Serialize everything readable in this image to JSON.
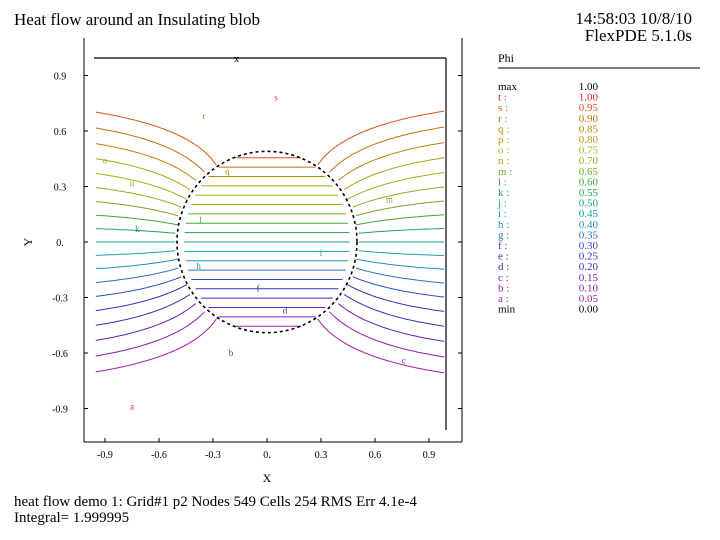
{
  "header": {
    "title": "Heat flow around an Insulating blob",
    "timestamp": "14:58:03 10/8/10",
    "software": "FlexPDE 5.1.0s"
  },
  "footer": {
    "run_info": "heat flow demo 1:  Grid#1  p2  Nodes  549 Cells  254 RMS Err   4.1e-4",
    "integral": "Integral=  1.999995"
  },
  "chart_data": {
    "type": "contour",
    "title": "Heat flow around an Insulating blob",
    "xlabel": "X",
    "ylabel": "Y",
    "xlim": [
      -1.0,
      1.0
    ],
    "ylim": [
      -1.0,
      1.0
    ],
    "x_ticks": [
      "-0.9",
      "-0.6",
      "-0.3",
      "0.",
      "0.3",
      "0.6",
      "0.9"
    ],
    "y_ticks": [
      "0.9",
      "0.6",
      "0.3",
      "0.",
      "-0.3",
      "-0.6",
      "-0.9"
    ],
    "x_tick_values": [
      -0.9,
      -0.6,
      -0.3,
      0.0,
      0.3,
      0.6,
      0.9
    ],
    "y_tick_values": [
      0.9,
      0.6,
      0.3,
      0.0,
      -0.3,
      -0.6,
      -0.9
    ],
    "top_marker": "x",
    "blob_radius": 0.5,
    "legend": {
      "variable": "Phi",
      "max_label": "max",
      "max_value": "1.00",
      "min_label": "min",
      "min_value": "0.00",
      "levels": [
        {
          "label": "t",
          "value": "1.00",
          "color": "#e8252a"
        },
        {
          "label": "s",
          "value": "0.95",
          "color": "#d9531a"
        },
        {
          "label": "r",
          "value": "0.90",
          "color": "#c56f10"
        },
        {
          "label": "q",
          "value": "0.85",
          "color": "#b8860b"
        },
        {
          "label": "p",
          "value": "0.80",
          "color": "#b0a210"
        },
        {
          "label": "o",
          "value": "0.75",
          "color": "#a6b11a"
        },
        {
          "label": "n",
          "value": "0.70",
          "color": "#8cb023"
        },
        {
          "label": "m",
          "value": "0.65",
          "color": "#6cac2a"
        },
        {
          "label": "l",
          "value": "0.60",
          "color": "#3faa35"
        },
        {
          "label": "k",
          "value": "0.55",
          "color": "#20a35a"
        },
        {
          "label": "j",
          "value": "0.50",
          "color": "#1aa085"
        },
        {
          "label": "i",
          "value": "0.45",
          "color": "#1ba0a8"
        },
        {
          "label": "h",
          "value": "0.40",
          "color": "#1f8fc0"
        },
        {
          "label": "g",
          "value": "0.35",
          "color": "#2a6fc8"
        },
        {
          "label": "f",
          "value": "0.30",
          "color": "#2a4dc4"
        },
        {
          "label": "e",
          "value": "0.25",
          "color": "#3330bf"
        },
        {
          "label": "d",
          "value": "0.20",
          "color": "#4a25b8"
        },
        {
          "label": "c",
          "value": "0.15",
          "color": "#6a20b4"
        },
        {
          "label": "b",
          "value": "0.10",
          "color": "#8a1db0"
        },
        {
          "label": "a",
          "value": "0.05",
          "color": "#aa1aac"
        }
      ]
    },
    "contour_labels_shown": [
      "s",
      "r",
      "q",
      "o",
      "n",
      "m",
      "l",
      "k",
      "i",
      "h",
      "f",
      "d",
      "c",
      "b",
      "a"
    ]
  }
}
